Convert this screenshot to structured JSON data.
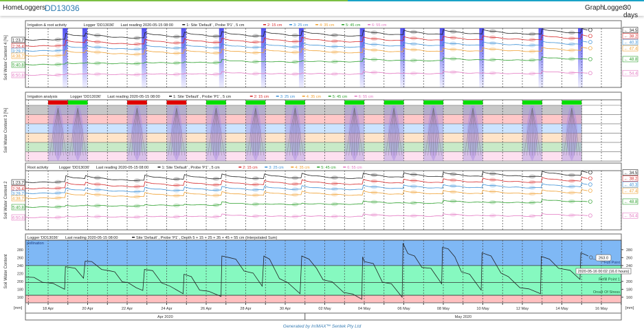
{
  "nav": {
    "home": "Home",
    "loggers": "Loggers",
    "logger_id": "DD13036",
    "graph": "Graph",
    "logger": "Logger",
    "range": "30 days"
  },
  "footer": "Generated by IrriMAX™ Sentek Pty Ltd",
  "colors": {
    "s1": "#222222",
    "s2": "#d62728",
    "s3": "#3a8fd6",
    "s4": "#f0a030",
    "s5": "#2ca02c",
    "s6": "#e377c2",
    "irrigation": "#3333ee",
    "good": "#00e000",
    "bad": "#e00000",
    "full_zone": "#7fb8f5",
    "optimal_zone": "#86f9c0",
    "stress_zone": "#ffc0c0"
  },
  "legend": {
    "logger": "Logger 'DD13036'",
    "last_reading": "Last reading 2020-05-15 08:00",
    "s1": "1: Site 'Default' , Probe 'P1' , 5 cm",
    "s2": "2: 15 cm",
    "s3": "3: 25 cm",
    "s4": "4: 35 cm",
    "s5": "5: 45 cm",
    "s6": "6: 55 cm",
    "sum": "Site 'Default' , Probe 'P1' , Depth 5 + 15 + 25 + 35 + 45 + 55 cm (Interpolated Sum)"
  },
  "chart_data": [
    {
      "type": "line",
      "title": "Irrigation & root activity",
      "ylabel": "Soil Water Content 4 [%]",
      "series_start": [
        "1:23.7",
        "2:26.4",
        "3:29.7",
        "4:38.7",
        "5:40.8",
        "6:50.8"
      ],
      "series_end": [
        "34.5",
        "38.2",
        "40.3",
        "47.4",
        "48.8",
        "54.4"
      ],
      "irrigation_events": [
        "2020-04-18 21:00",
        "2020-04-19 21:00",
        "2020-04-22 21:00",
        "2020-04-24 21:00",
        "2020-04-26 19:00",
        "2020-04-28 22:00",
        "2020-04-30 20:00",
        "2020-05-03 22:00",
        "2020-05-05 23:00",
        "2020-05-07 23:00",
        "2020-05-09 23:00",
        "2020-05-12 23:00",
        "2020-05-14 23:00"
      ]
    },
    {
      "type": "heatmap",
      "title": "Irrigation analysis",
      "ylabel": "Soil Water Content 3 [%]",
      "days": [
        {
          "date": "2020-04-18",
          "status": "bad"
        },
        {
          "date": "2020-04-19",
          "status": "good"
        },
        {
          "date": "2020-04-22",
          "status": "bad"
        },
        {
          "date": "2020-04-24",
          "status": "bad"
        },
        {
          "date": "2020-04-26",
          "status": "good"
        },
        {
          "date": "2020-04-28",
          "status": "good"
        },
        {
          "date": "2020-04-30",
          "status": "good"
        },
        {
          "date": "2020-05-03",
          "status": "good"
        },
        {
          "date": "2020-05-05",
          "status": "good"
        },
        {
          "date": "2020-05-07",
          "status": "good"
        },
        {
          "date": "2020-05-09",
          "status": "good"
        },
        {
          "date": "2020-05-12",
          "status": "good"
        },
        {
          "date": "2020-05-14",
          "status": "good"
        }
      ]
    },
    {
      "type": "line",
      "title": "Root activity",
      "ylabel": "Soil Water Content 2",
      "series_start": [
        "1:23.7",
        "2:26.4",
        "3:29.7",
        "4:38.7",
        "5:40.8",
        "6:50.8"
      ],
      "series_end": [
        "34.5",
        "38.2",
        "40.3",
        "47.4",
        "48.8",
        "54.4"
      ]
    },
    {
      "type": "line",
      "title": "",
      "ylabel": "Soil Water Content",
      "yunit": "[mm]",
      "ylim": [
        146,
        304
      ],
      "yticks": [
        160,
        180,
        200,
        220,
        240,
        260,
        280
      ],
      "xticks": [
        "18 Apr",
        "20 Apr",
        "22 Apr",
        "24 Apr",
        "26 Apr",
        "28 Apr",
        "30 Apr",
        "02 May",
        "04 May",
        "06 May",
        "08 May",
        "10 May",
        "12 May",
        "14 May",
        "16 May"
      ],
      "months": [
        "Apr 2020",
        "May 2020"
      ],
      "zones": [
        {
          "label": "pollination",
          "from": 240,
          "to": 304
        },
        {
          "label": "Full Point",
          "value": 240
        },
        {
          "label": "Refill Point 1",
          "value": 197
        },
        {
          "label": "Onset Of Stress",
          "value": 165
        }
      ],
      "tooltip": {
        "value": "263.0",
        "time": "2020-05-16 00:02 (16.0 hours)"
      },
      "points": [
        [
          "2020-04-16 21:00",
          211
        ],
        [
          "2020-04-17 07:00",
          210
        ],
        [
          "2020-04-17 17:00",
          198
        ],
        [
          "2020-04-18 06:00",
          195
        ],
        [
          "2020-04-18 20:00",
          180
        ],
        [
          "2020-04-18 21:00",
          237
        ],
        [
          "2020-04-19 09:00",
          233
        ],
        [
          "2020-04-19 19:00",
          208
        ],
        [
          "2020-04-19 21:00",
          251
        ],
        [
          "2020-04-20 05:00",
          250
        ],
        [
          "2020-04-20 17:00",
          230
        ],
        [
          "2020-04-21 02:00",
          227
        ],
        [
          "2020-04-21 09:00",
          224
        ],
        [
          "2020-04-21 18:00",
          199
        ],
        [
          "2020-04-22 01:00",
          197
        ],
        [
          "2020-04-22 11:00",
          184
        ],
        [
          "2020-04-22 19:00",
          177
        ],
        [
          "2020-04-22 21:00",
          230
        ],
        [
          "2020-04-23 07:00",
          227
        ],
        [
          "2020-04-23 18:00",
          196
        ],
        [
          "2020-04-24 04:00",
          188
        ],
        [
          "2020-04-24 20:00",
          169
        ],
        [
          "2020-04-24 21:00",
          218
        ],
        [
          "2020-04-25 06:00",
          212
        ],
        [
          "2020-04-25 16:00",
          178
        ],
        [
          "2020-04-26 03:00",
          175
        ],
        [
          "2020-04-26 18:00",
          162
        ],
        [
          "2020-04-26 19:00",
          264
        ],
        [
          "2020-04-27 04:00",
          260
        ],
        [
          "2020-04-27 12:00",
          256
        ],
        [
          "2020-04-27 22:00",
          226
        ],
        [
          "2020-04-28 09:00",
          221
        ],
        [
          "2020-04-28 20:00",
          188
        ],
        [
          "2020-04-28 22:00",
          264
        ],
        [
          "2020-04-29 05:00",
          256
        ],
        [
          "2020-04-29 17:00",
          207
        ],
        [
          "2020-04-30 03:00",
          197
        ],
        [
          "2020-04-30 18:00",
          169
        ],
        [
          "2020-04-30 20:00",
          264
        ],
        [
          "2020-05-01 05:00",
          256
        ],
        [
          "2020-05-01 14:00",
          233
        ],
        [
          "2020-05-01 22:00",
          204
        ],
        [
          "2020-05-02 09:00",
          199
        ],
        [
          "2020-05-02 23:00",
          172
        ],
        [
          "2020-05-03 10:00",
          168
        ],
        [
          "2020-05-03 21:00",
          155
        ],
        [
          "2020-05-03 22:00",
          262
        ],
        [
          "2020-05-04 00:00",
          250
        ],
        [
          "2020-05-04 11:00",
          245
        ],
        [
          "2020-05-04 22:00",
          198
        ],
        [
          "2020-05-05 09:00",
          194
        ],
        [
          "2020-05-05 22:00",
          160
        ],
        [
          "2020-05-05 23:00",
          296
        ],
        [
          "2020-05-06 05:00",
          270
        ],
        [
          "2020-05-06 13:00",
          264
        ],
        [
          "2020-05-06 22:00",
          235
        ],
        [
          "2020-05-07 09:00",
          233
        ],
        [
          "2020-05-07 22:00",
          194
        ],
        [
          "2020-05-07 23:00",
          286
        ],
        [
          "2020-05-08 06:00",
          282
        ],
        [
          "2020-05-08 14:00",
          262
        ],
        [
          "2020-05-08 22:00",
          224
        ],
        [
          "2020-05-09 08:00",
          218
        ],
        [
          "2020-05-09 22:00",
          178
        ],
        [
          "2020-05-09 23:00",
          272
        ],
        [
          "2020-05-10 10:00",
          264
        ],
        [
          "2020-05-10 22:00",
          221
        ],
        [
          "2020-05-11 07:00",
          212
        ],
        [
          "2020-05-11 21:00",
          184
        ],
        [
          "2020-05-12 08:00",
          181
        ],
        [
          "2020-05-12 22:00",
          169
        ],
        [
          "2020-05-12 23:00",
          263
        ],
        [
          "2020-05-13 09:00",
          256
        ],
        [
          "2020-05-13 20:00",
          233
        ],
        [
          "2020-05-14 10:00",
          228
        ],
        [
          "2020-05-14 22:00",
          205
        ],
        [
          "2020-05-14 23:00",
          272
        ],
        [
          "2020-05-15 04:00",
          268
        ],
        [
          "2020-05-15 08:00",
          264
        ]
      ]
    }
  ]
}
